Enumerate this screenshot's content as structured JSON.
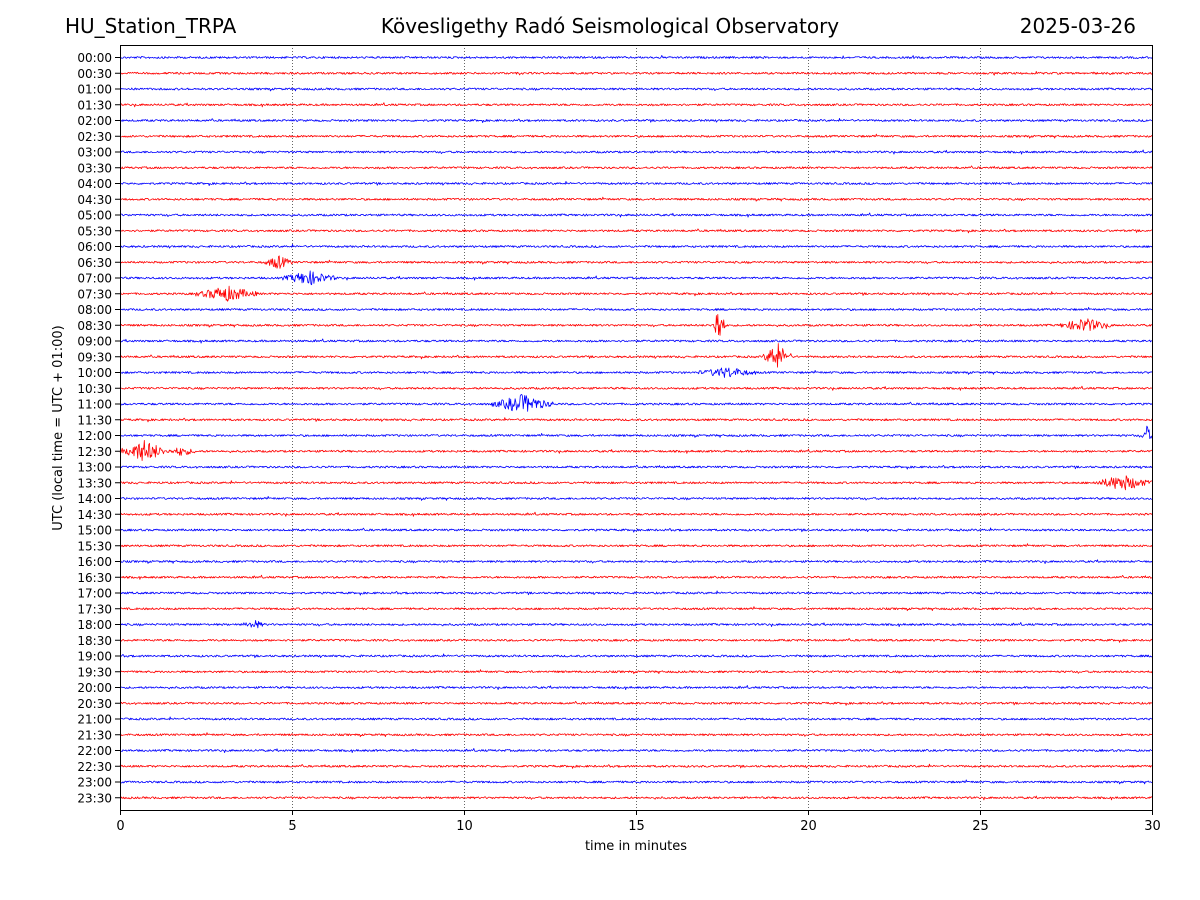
{
  "header": {
    "station": "HU_Station_TRPA",
    "title": "Kövesligethy Radó Seismological Observatory",
    "date": "2025-03-26"
  },
  "colors": {
    "blue_trace": "#0000ff",
    "red_trace": "#ff0000",
    "grid": "#000000",
    "axes": "#000000"
  },
  "chart_data": {
    "type": "line",
    "title": "Kövesligethy Radó Seismological Observatory",
    "xlabel": "time in minutes",
    "ylabel": "UTC (local time = UTC + 01:00)",
    "xlim": [
      0,
      30
    ],
    "x_ticks": [
      0,
      5,
      10,
      15,
      20,
      25,
      30
    ],
    "x_tick_labels": [
      "0",
      "5",
      "10",
      "15",
      "20",
      "25",
      "30"
    ],
    "vertical_gridlines_at": [
      5,
      10,
      15,
      20,
      25
    ],
    "grid": "vertical dotted",
    "legend": "none",
    "series_color_pattern": [
      "blue",
      "red"
    ],
    "rows": [
      {
        "label": "00:00",
        "events": []
      },
      {
        "label": "00:30",
        "events": []
      },
      {
        "label": "01:00",
        "events": []
      },
      {
        "label": "01:30",
        "events": []
      },
      {
        "label": "02:00",
        "events": []
      },
      {
        "label": "02:30",
        "events": []
      },
      {
        "label": "03:00",
        "events": []
      },
      {
        "label": "03:30",
        "events": []
      },
      {
        "label": "04:00",
        "events": []
      },
      {
        "label": "04:30",
        "events": []
      },
      {
        "label": "05:00",
        "events": []
      },
      {
        "label": "05:30",
        "events": []
      },
      {
        "label": "06:00",
        "events": []
      },
      {
        "label": "06:30",
        "events": [
          {
            "start": 4.2,
            "end": 5.0,
            "amp": 0.4
          }
        ]
      },
      {
        "label": "07:00",
        "events": [
          {
            "start": 4.7,
            "end": 6.3,
            "amp": 0.4
          }
        ]
      },
      {
        "label": "07:30",
        "events": [
          {
            "start": 2.2,
            "end": 4.0,
            "amp": 0.45
          }
        ]
      },
      {
        "label": "08:00",
        "events": []
      },
      {
        "label": "08:30",
        "events": [
          {
            "start": 17.2,
            "end": 17.6,
            "amp": 1.2
          },
          {
            "start": 27.3,
            "end": 28.8,
            "amp": 0.4
          }
        ]
      },
      {
        "label": "09:00",
        "events": []
      },
      {
        "label": "09:30",
        "events": [
          {
            "start": 18.7,
            "end": 19.5,
            "amp": 0.8
          }
        ]
      },
      {
        "label": "10:00",
        "events": [
          {
            "start": 16.8,
            "end": 18.5,
            "amp": 0.3
          }
        ]
      },
      {
        "label": "10:30",
        "events": []
      },
      {
        "label": "11:00",
        "events": [
          {
            "start": 10.8,
            "end": 12.6,
            "amp": 0.55
          }
        ]
      },
      {
        "label": "11:30",
        "events": []
      },
      {
        "label": "12:00",
        "events": [
          {
            "start": 29.7,
            "end": 30.0,
            "amp": 0.6
          }
        ]
      },
      {
        "label": "12:30",
        "events": [
          {
            "start": 0.0,
            "end": 1.4,
            "amp": 0.65
          },
          {
            "start": 1.4,
            "end": 2.2,
            "amp": 0.25
          }
        ]
      },
      {
        "label": "13:00",
        "events": []
      },
      {
        "label": "13:30",
        "events": [
          {
            "start": 28.3,
            "end": 30.0,
            "amp": 0.45
          }
        ]
      },
      {
        "label": "14:00",
        "events": []
      },
      {
        "label": "14:30",
        "events": []
      },
      {
        "label": "15:00",
        "events": []
      },
      {
        "label": "15:30",
        "events": []
      },
      {
        "label": "16:00",
        "events": []
      },
      {
        "label": "16:30",
        "events": []
      },
      {
        "label": "17:00",
        "events": []
      },
      {
        "label": "17:30",
        "events": []
      },
      {
        "label": "18:00",
        "events": [
          {
            "start": 3.6,
            "end": 4.2,
            "amp": 0.25
          }
        ]
      },
      {
        "label": "18:30",
        "events": []
      },
      {
        "label": "19:00",
        "events": []
      },
      {
        "label": "19:30",
        "events": []
      },
      {
        "label": "20:00",
        "events": []
      },
      {
        "label": "20:30",
        "events": []
      },
      {
        "label": "21:00",
        "events": []
      },
      {
        "label": "21:30",
        "events": []
      },
      {
        "label": "22:00",
        "events": []
      },
      {
        "label": "22:30",
        "events": []
      },
      {
        "label": "23:00",
        "events": []
      },
      {
        "label": "23:30",
        "events": []
      }
    ]
  }
}
